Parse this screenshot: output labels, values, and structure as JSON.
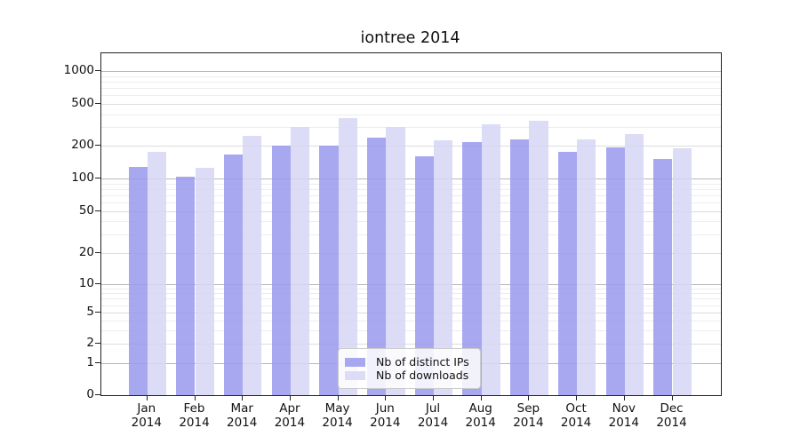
{
  "chart_title": "iontree 2014",
  "chart_data": {
    "type": "bar",
    "title": "iontree 2014",
    "categories": [
      "Jan 2014",
      "Feb 2014",
      "Mar 2014",
      "Apr 2014",
      "May 2014",
      "Jun 2014",
      "Jul 2014",
      "Aug 2014",
      "Sep 2014",
      "Oct 2014",
      "Nov 2014",
      "Dec 2014"
    ],
    "series": [
      {
        "name": "Nb of distinct IPs",
        "color": "#9999ee",
        "values": [
          127,
          103,
          166,
          200,
          200,
          240,
          161,
          216,
          230,
          177,
          195,
          151
        ]
      },
      {
        "name": "Nb of downloads",
        "color": "#d6d6f5",
        "values": [
          177,
          125,
          248,
          303,
          365,
          300,
          227,
          322,
          345,
          231,
          259,
          191
        ]
      }
    ],
    "xlabel": "",
    "ylabel": "",
    "yscale": "symlog",
    "y_ticks": [
      0,
      1,
      2,
      5,
      10,
      20,
      50,
      100,
      200,
      500,
      1000
    ],
    "ylim": [
      0,
      1500
    ],
    "grid": true,
    "legend_position": "lower center",
    "colors": {
      "major_gridline": "#b8b8b8",
      "labeled_gridline": "#dcdcdc",
      "minor_gridline": "#ededed",
      "axis": "#222222"
    }
  }
}
